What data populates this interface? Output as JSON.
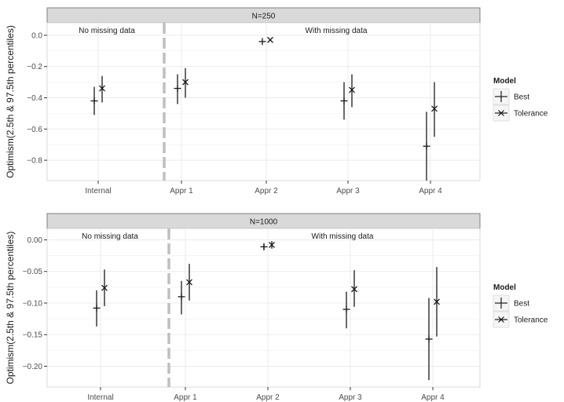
{
  "chart_data": [
    {
      "type": "errorbar",
      "facet_title": "N=250",
      "ylabel": "Optimism(2.5th & 97.5th percentiles)",
      "categories": [
        "Internal",
        "Appr 1",
        "Appr 2",
        "Appr 3",
        "Appr 4"
      ],
      "ylim": [
        -0.93,
        0.08
      ],
      "yticks": [
        -0.8,
        -0.6,
        -0.4,
        -0.2,
        0.0
      ],
      "ytick_labels": [
        "−0.8",
        "−0.6",
        "−0.4",
        "−0.2",
        "0.0"
      ],
      "annotations": [
        "No missing data",
        "With missing data"
      ],
      "series": [
        {
          "name": "Best",
          "marker": "plus",
          "points": [
            {
              "category": "Internal",
              "y": -0.42,
              "low": -0.51,
              "high": -0.33
            },
            {
              "category": "Appr 1",
              "y": -0.34,
              "low": -0.44,
              "high": -0.25
            },
            {
              "category": "Appr 2",
              "y": -0.04,
              "low": -0.04,
              "high": -0.04
            },
            {
              "category": "Appr 3",
              "y": -0.42,
              "low": -0.54,
              "high": -0.3
            },
            {
              "category": "Appr 4",
              "y": -0.71,
              "low": -0.93,
              "high": -0.49
            }
          ]
        },
        {
          "name": "Tolerance",
          "marker": "x",
          "points": [
            {
              "category": "Internal",
              "y": -0.34,
              "low": -0.43,
              "high": -0.26
            },
            {
              "category": "Appr 1",
              "y": -0.3,
              "low": -0.4,
              "high": -0.21
            },
            {
              "category": "Appr 2",
              "y": -0.03,
              "low": -0.03,
              "high": -0.03
            },
            {
              "category": "Appr 3",
              "y": -0.35,
              "low": -0.46,
              "high": -0.25
            },
            {
              "category": "Appr 4",
              "y": -0.47,
              "low": -0.65,
              "high": -0.3
            }
          ]
        }
      ],
      "legend": {
        "title": "Model",
        "items": [
          "Best",
          "Tolerance"
        ],
        "position": "right"
      }
    },
    {
      "type": "errorbar",
      "facet_title": "N=1000",
      "ylabel": "Optimism(2.5th & 97.5th percentiles)",
      "categories": [
        "Internal",
        "Appr 1",
        "Appr 2",
        "Appr 3",
        "Appr 4"
      ],
      "ylim": [
        -0.233,
        0.018
      ],
      "yticks": [
        -0.2,
        -0.15,
        -0.1,
        -0.05,
        0.0
      ],
      "ytick_labels": [
        "−0.20",
        "−0.15",
        "−0.10",
        "−0.05",
        "0.00"
      ],
      "annotations": [
        "No missing data",
        "With missing data"
      ],
      "series": [
        {
          "name": "Best",
          "marker": "plus",
          "points": [
            {
              "category": "Internal",
              "y": -0.108,
              "low": -0.137,
              "high": -0.08
            },
            {
              "category": "Appr 1",
              "y": -0.09,
              "low": -0.118,
              "high": -0.065
            },
            {
              "category": "Appr 2",
              "y": -0.011,
              "low": -0.016,
              "high": -0.006
            },
            {
              "category": "Appr 3",
              "y": -0.11,
              "low": -0.14,
              "high": -0.082
            },
            {
              "category": "Appr 4",
              "y": -0.157,
              "low": -0.222,
              "high": -0.092
            }
          ]
        },
        {
          "name": "Tolerance",
          "marker": "x",
          "points": [
            {
              "category": "Internal",
              "y": -0.076,
              "low": -0.105,
              "high": -0.047
            },
            {
              "category": "Appr 1",
              "y": -0.067,
              "low": -0.096,
              "high": -0.038
            },
            {
              "category": "Appr 2",
              "y": -0.008,
              "low": -0.014,
              "high": -0.002
            },
            {
              "category": "Appr 3",
              "y": -0.078,
              "low": -0.106,
              "high": -0.048
            },
            {
              "category": "Appr 4",
              "y": -0.098,
              "low": -0.153,
              "high": -0.043
            }
          ]
        }
      ],
      "legend": {
        "title": "Model",
        "items": [
          "Best",
          "Tolerance"
        ],
        "position": "right"
      }
    }
  ],
  "colors": {
    "strip_fill": "#d9d9d9",
    "strip_border": "#7f7f7f",
    "grid": "#ebebeb",
    "mark": "#1a1a1a",
    "separator": "#bfbfbf"
  }
}
